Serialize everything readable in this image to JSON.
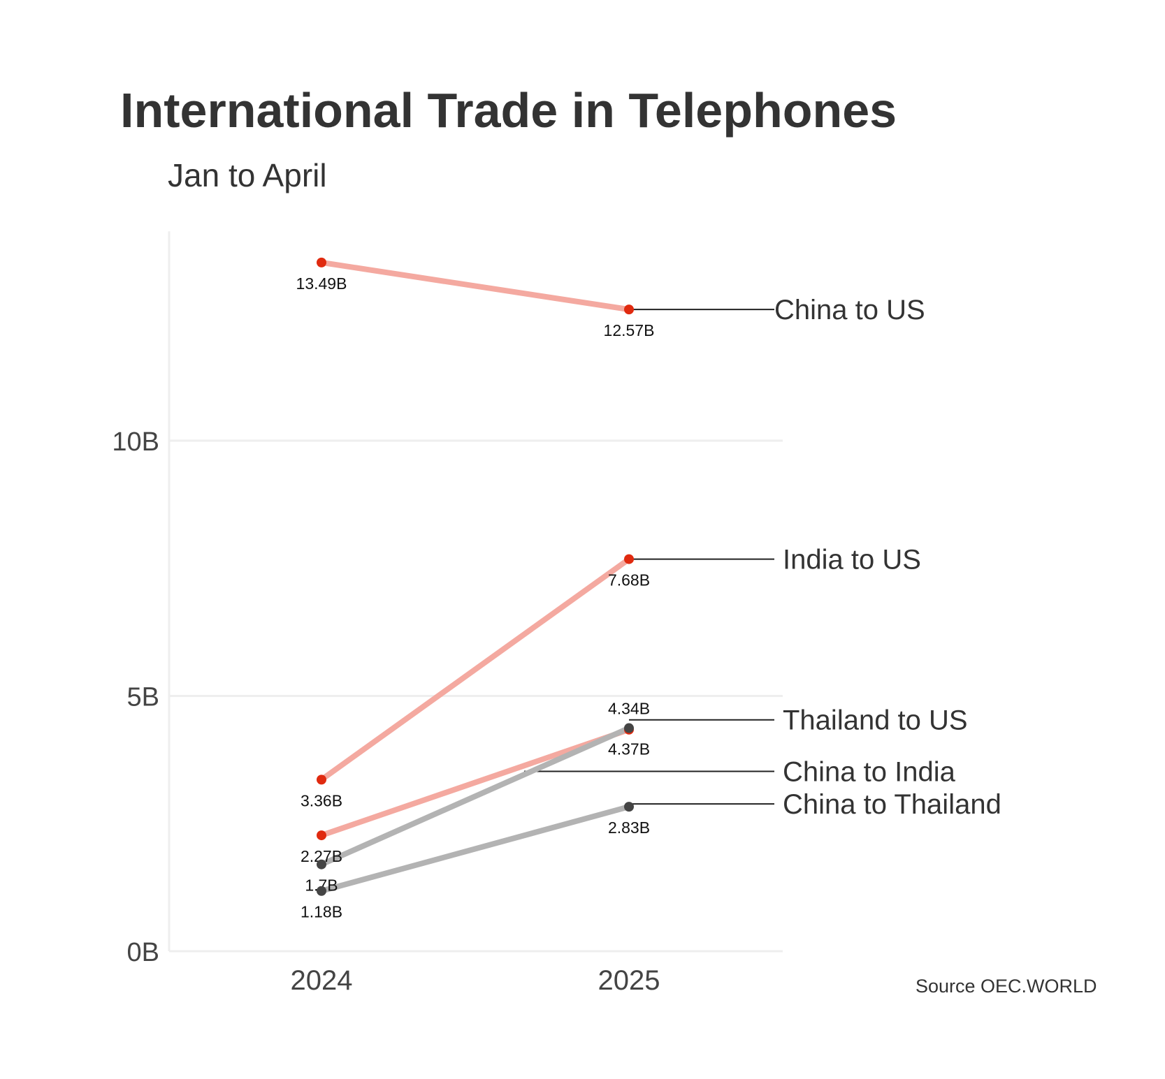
{
  "chart_data": {
    "type": "line",
    "title": "International Trade in Telephones",
    "subtitle": "Jan to April",
    "source": "Source OEC.WORLD",
    "x": [
      "2024",
      "2025"
    ],
    "y_ticks": [
      {
        "value": 0,
        "label": "0B"
      },
      {
        "value": 5,
        "label": "5B"
      },
      {
        "value": 10,
        "label": "10B"
      }
    ],
    "ylim": [
      0,
      14.1
    ],
    "grid": true,
    "units": "billions",
    "colors": {
      "us": "#f4a9a0",
      "us_point": "#e02a0f",
      "other": "#b3b3b3",
      "other_point": "#444444"
    },
    "series": [
      {
        "name": "China to US",
        "group": "us",
        "values": [
          13.49,
          12.57
        ],
        "labels": [
          "13.49B",
          "12.57B"
        ],
        "label_pos": [
          "below",
          "below"
        ]
      },
      {
        "name": "India to US",
        "group": "us",
        "values": [
          3.36,
          7.68
        ],
        "labels": [
          "3.36B",
          "7.68B"
        ],
        "label_pos": [
          "below",
          "below"
        ]
      },
      {
        "name": "Thailand to US",
        "group": "us",
        "values": [
          2.27,
          4.34
        ],
        "labels": [
          "2.27B",
          "4.34B"
        ],
        "label_pos": [
          "below",
          "above"
        ]
      },
      {
        "name": "China to India",
        "group": "other",
        "values": [
          1.7,
          4.37
        ],
        "labels": [
          "1.7B",
          "4.37B"
        ],
        "label_pos": [
          "below",
          "below"
        ]
      },
      {
        "name": "China to Thailand",
        "group": "other",
        "values": [
          1.18,
          2.83
        ],
        "labels": [
          "1.18B",
          "2.83B"
        ],
        "label_pos": [
          "below",
          "below"
        ]
      }
    ]
  }
}
